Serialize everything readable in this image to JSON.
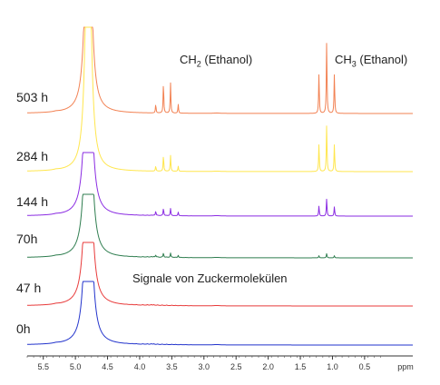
{
  "chart_data": {
    "type": "line",
    "xlabel": "ppm",
    "xlim": [
      5.75,
      -0.25
    ],
    "xticks": [
      5.5,
      5.0,
      4.5,
      4.0,
      3.5,
      3.0,
      2.5,
      2.0,
      1.5,
      1.0,
      0.5
    ],
    "xtick_labels": [
      "5.5",
      "5.0",
      "4.5",
      "4.0",
      "3.5",
      "3.0",
      "2.5",
      "2.0",
      "1.5",
      "1.0",
      "0.5"
    ],
    "grid": false,
    "annotations": {
      "ch2": {
        "main": "CH",
        "sub": "2",
        "rest": " (Ethanol)"
      },
      "ch3": {
        "main": "CH",
        "sub": "3",
        "rest": " (Ethanol)"
      },
      "sugar": "Signale von Zuckermolekülen"
    },
    "series": [
      {
        "name": "503 h",
        "color": "#f28152",
        "ch2_quartet": [
          0.12,
          0.42,
          0.42,
          0.12
        ],
        "ch3_triplet": [
          0.55,
          1.0,
          0.55
        ],
        "sugar_level": 0.0,
        "water_clipped": true
      },
      {
        "name": "284 h",
        "color": "#ffe64d",
        "ch2_quartet": [
          0.07,
          0.22,
          0.22,
          0.07
        ],
        "ch3_triplet": [
          0.38,
          0.65,
          0.38
        ],
        "sugar_level": 0.0,
        "water_clipped": true
      },
      {
        "name": "144 h",
        "color": "#8a2be2",
        "ch2_quartet": [
          0.06,
          0.1,
          0.1,
          0.05
        ],
        "ch3_triplet": [
          0.14,
          0.24,
          0.13
        ],
        "sugar_level": 0.05,
        "water_clipped": false
      },
      {
        "name": "70h",
        "color": "#2e7d4f",
        "ch2_quartet": [
          0.03,
          0.06,
          0.06,
          0.03
        ],
        "ch3_triplet": [
          0.03,
          0.06,
          0.03
        ],
        "sugar_level": 0.09,
        "water_clipped": false
      },
      {
        "name": "47 h",
        "color": "#e83a3a",
        "ch2_quartet": [
          0.0,
          0.0,
          0.0,
          0.0
        ],
        "ch3_triplet": [
          0.0,
          0.0,
          0.0
        ],
        "sugar_level": 0.1,
        "water_clipped": false
      },
      {
        "name": "0h",
        "color": "#2233cc",
        "ch2_quartet": [
          0.0,
          0.0,
          0.0,
          0.0
        ],
        "ch3_triplet": [
          0.0,
          0.0,
          0.0
        ],
        "sugar_level": 0.09,
        "water_clipped": false
      }
    ]
  }
}
